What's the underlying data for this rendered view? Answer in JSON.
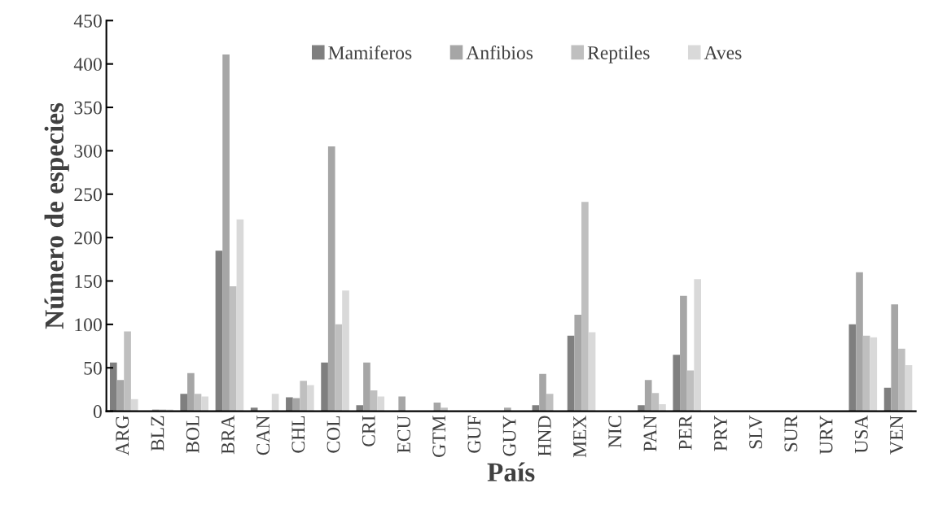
{
  "chart_data": {
    "type": "bar",
    "xlabel": "País",
    "ylabel": "Número de especies",
    "categories": [
      "ARG",
      "BLZ",
      "BOL",
      "BRA",
      "CAN",
      "CHL",
      "COL",
      "CRI",
      "ECU",
      "GTM",
      "GUF",
      "GUY",
      "HND",
      "MEX",
      "NIC",
      "PAN",
      "PER",
      "PRY",
      "SLV",
      "SUR",
      "URY",
      "USA",
      "VEN"
    ],
    "series": [
      {
        "name": "Mamiferos",
        "color": "#7f7f7f",
        "values": [
          56,
          0,
          20,
          185,
          4,
          16,
          56,
          7,
          0,
          0,
          0,
          0,
          7,
          87,
          0,
          7,
          65,
          0,
          0,
          0,
          0,
          100,
          27
        ]
      },
      {
        "name": "Anfibios",
        "color": "#a6a6a6",
        "values": [
          36,
          2,
          44,
          411,
          0,
          15,
          305,
          56,
          17,
          10,
          0,
          4,
          43,
          111,
          0,
          36,
          133,
          0,
          0,
          0,
          0,
          160,
          123
        ]
      },
      {
        "name": "Reptiles",
        "color": "#bfbfbf",
        "values": [
          92,
          2,
          20,
          144,
          0,
          35,
          100,
          24,
          0,
          4,
          0,
          0,
          20,
          241,
          0,
          21,
          47,
          0,
          0,
          0,
          0,
          87,
          72
        ]
      },
      {
        "name": "Aves",
        "color": "#d9d9d9",
        "values": [
          14,
          2,
          17,
          221,
          20,
          30,
          139,
          17,
          0,
          0,
          0,
          0,
          0,
          91,
          0,
          8,
          152,
          0,
          0,
          0,
          0,
          85,
          53
        ]
      }
    ],
    "ylim": [
      0,
      450
    ],
    "yticks": [
      0,
      50,
      100,
      150,
      200,
      250,
      300,
      350,
      400,
      450
    ],
    "grid": false,
    "legend": "top"
  }
}
